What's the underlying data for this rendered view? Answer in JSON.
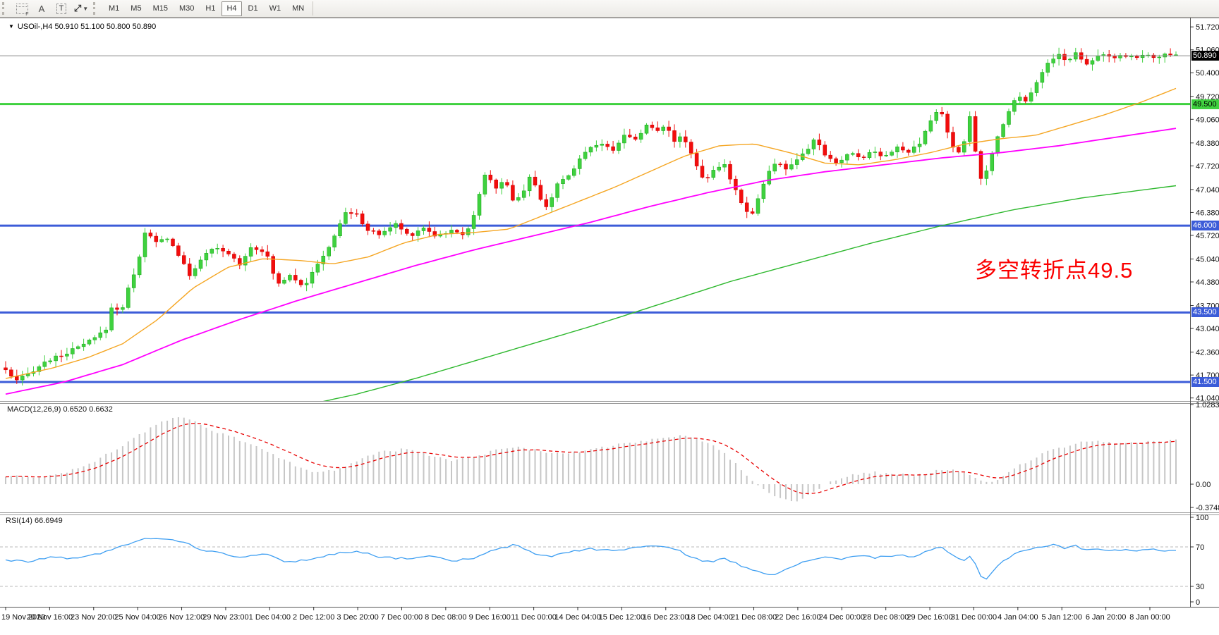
{
  "toolbar": {
    "tools": [
      {
        "name": "fibonacci",
        "glyph": ""
      },
      {
        "name": "text-label",
        "glyph": "A"
      },
      {
        "name": "text",
        "glyph": "T"
      },
      {
        "name": "arrows",
        "glyph": "⤢"
      }
    ],
    "timeframes": [
      "M1",
      "M5",
      "M15",
      "M30",
      "H1",
      "H4",
      "D1",
      "W1",
      "MN"
    ],
    "active_timeframe": "H4"
  },
  "symbol_bar": {
    "dropdown": "▼",
    "text": "USOil-,H4 50.910 51.100 50.800 50.890"
  },
  "chart_data": {
    "type": "candlestick",
    "symbol": "USOil-",
    "timeframe": "H4",
    "ohlc_display": {
      "open": "50.910",
      "high": "51.100",
      "low": "50.800",
      "close": "50.890"
    },
    "current_price": "50.890",
    "price_axis": {
      "ticks": [
        "51.720",
        "51.060",
        "50.400",
        "49.720",
        "49.060",
        "48.380",
        "47.720",
        "47.040",
        "46.380",
        "45.720",
        "45.040",
        "44.380",
        "43.700",
        "43.040",
        "42.360",
        "41.700",
        "41.040"
      ],
      "min": 41.04,
      "max": 51.72
    },
    "time_axis": [
      "19 Nov 2020",
      "20 Nov 16:00",
      "23 Nov 20:00",
      "25 Nov 04:00",
      "26 Nov 12:00",
      "29 Nov 23:00",
      "1 Dec 04:00",
      "2 Dec 12:00",
      "3 Dec 20:00",
      "7 Dec 00:00",
      "8 Dec 08:00",
      "9 Dec 16:00",
      "11 Dec 00:00",
      "14 Dec 04:00",
      "15 Dec 12:00",
      "16 Dec 23:00",
      "18 Dec 04:00",
      "21 Dec 08:00",
      "22 Dec 16:00",
      "24 Dec 00:00",
      "28 Dec 08:00",
      "29 Dec 16:00",
      "31 Dec 00:00",
      "4 Jan 04:00",
      "5 Jan 12:00",
      "6 Jan 20:00",
      "8 Jan 00:00"
    ],
    "horizontal_lines": [
      {
        "price": 49.5,
        "label": "49.500",
        "color": "#3fd13f",
        "text_color": "#000000"
      },
      {
        "price": 46.0,
        "label": "46.000",
        "color": "#3c5cd8",
        "text_color": "#ffffff"
      },
      {
        "price": 43.5,
        "label": "43.500",
        "color": "#3c5cd8",
        "text_color": "#ffffff"
      },
      {
        "price": 41.5,
        "label": "41.500",
        "color": "#3c5cd8",
        "text_color": "#ffffff"
      }
    ],
    "annotation": {
      "text": "多空转折点49.5",
      "color": "#fb0000"
    },
    "candle_colors": {
      "up": "#3fd13f",
      "up_border": "#14a514",
      "down": "#f20d0d",
      "down_border": "#cc0000"
    },
    "price_anchors": [
      [
        0,
        41.85
      ],
      [
        0.008,
        41.5
      ],
      [
        0.02,
        41.75
      ],
      [
        0.035,
        42.1
      ],
      [
        0.05,
        42.3
      ],
      [
        0.065,
        42.55
      ],
      [
        0.078,
        42.8
      ],
      [
        0.088,
        43.1
      ],
      [
        0.093,
        44.15
      ],
      [
        0.097,
        43.2
      ],
      [
        0.102,
        43.95
      ],
      [
        0.108,
        44.45
      ],
      [
        0.115,
        45.2
      ],
      [
        0.12,
        45.9
      ],
      [
        0.127,
        45.5
      ],
      [
        0.138,
        45.65
      ],
      [
        0.148,
        45.15
      ],
      [
        0.157,
        44.55
      ],
      [
        0.167,
        45.05
      ],
      [
        0.178,
        45.35
      ],
      [
        0.19,
        45.2
      ],
      [
        0.2,
        44.9
      ],
      [
        0.21,
        45.4
      ],
      [
        0.222,
        45.25
      ],
      [
        0.232,
        44.3
      ],
      [
        0.243,
        44.6
      ],
      [
        0.255,
        44.25
      ],
      [
        0.268,
        44.95
      ],
      [
        0.28,
        45.6
      ],
      [
        0.29,
        46.4
      ],
      [
        0.3,
        46.3
      ],
      [
        0.31,
        45.85
      ],
      [
        0.32,
        45.75
      ],
      [
        0.333,
        46.05
      ],
      [
        0.345,
        45.7
      ],
      [
        0.357,
        45.95
      ],
      [
        0.368,
        45.7
      ],
      [
        0.38,
        45.85
      ],
      [
        0.393,
        45.75
      ],
      [
        0.402,
        46.5
      ],
      [
        0.41,
        47.55
      ],
      [
        0.418,
        47.05
      ],
      [
        0.426,
        47.35
      ],
      [
        0.434,
        46.7
      ],
      [
        0.442,
        46.95
      ],
      [
        0.449,
        47.5
      ],
      [
        0.456,
        46.75
      ],
      [
        0.463,
        46.55
      ],
      [
        0.471,
        47.15
      ],
      [
        0.482,
        47.45
      ],
      [
        0.495,
        48.15
      ],
      [
        0.508,
        48.4
      ],
      [
        0.518,
        48.15
      ],
      [
        0.528,
        48.6
      ],
      [
        0.538,
        48.5
      ],
      [
        0.548,
        48.9
      ],
      [
        0.556,
        48.7
      ],
      [
        0.564,
        48.95
      ],
      [
        0.572,
        48.4
      ],
      [
        0.579,
        48.6
      ],
      [
        0.588,
        47.9
      ],
      [
        0.597,
        47.3
      ],
      [
        0.606,
        47.6
      ],
      [
        0.614,
        47.75
      ],
      [
        0.622,
        47.15
      ],
      [
        0.63,
        46.6
      ],
      [
        0.637,
        46.25
      ],
      [
        0.644,
        46.9
      ],
      [
        0.652,
        47.55
      ],
      [
        0.66,
        47.85
      ],
      [
        0.668,
        47.6
      ],
      [
        0.676,
        47.9
      ],
      [
        0.684,
        48.1
      ],
      [
        0.692,
        48.55
      ],
      [
        0.701,
        47.95
      ],
      [
        0.711,
        47.8
      ],
      [
        0.721,
        48.1
      ],
      [
        0.731,
        47.95
      ],
      [
        0.741,
        48.15
      ],
      [
        0.751,
        48.0
      ],
      [
        0.761,
        48.25
      ],
      [
        0.771,
        48.1
      ],
      [
        0.781,
        48.35
      ],
      [
        0.79,
        49.0
      ],
      [
        0.798,
        49.4
      ],
      [
        0.805,
        48.7
      ],
      [
        0.812,
        47.95
      ],
      [
        0.819,
        48.45
      ],
      [
        0.825,
        49.35
      ],
      [
        0.83,
        47.6
      ],
      [
        0.835,
        47.2
      ],
      [
        0.841,
        47.9
      ],
      [
        0.847,
        48.5
      ],
      [
        0.853,
        49.0
      ],
      [
        0.859,
        49.45
      ],
      [
        0.865,
        49.75
      ],
      [
        0.871,
        49.6
      ],
      [
        0.877,
        49.9
      ],
      [
        0.884,
        50.3
      ],
      [
        0.891,
        50.7
      ],
      [
        0.899,
        50.95
      ],
      [
        0.907,
        50.7
      ],
      [
        0.915,
        51.0
      ],
      [
        0.923,
        50.65
      ],
      [
        0.931,
        50.85
      ],
      [
        0.939,
        50.95
      ],
      [
        0.947,
        50.78
      ],
      [
        0.955,
        50.9
      ],
      [
        0.963,
        50.85
      ],
      [
        0.972,
        50.9
      ],
      [
        0.981,
        50.86
      ],
      [
        0.99,
        50.9
      ],
      [
        1,
        50.89
      ]
    ],
    "moving_averages": [
      {
        "name": "ma-fast",
        "color": "#f5a623",
        "width": 1.4,
        "anchors": [
          [
            0,
            41.6
          ],
          [
            0.04,
            41.9
          ],
          [
            0.07,
            42.2
          ],
          [
            0.1,
            42.6
          ],
          [
            0.13,
            43.3
          ],
          [
            0.16,
            44.2
          ],
          [
            0.19,
            44.8
          ],
          [
            0.22,
            45.05
          ],
          [
            0.25,
            45.0
          ],
          [
            0.28,
            44.9
          ],
          [
            0.31,
            45.1
          ],
          [
            0.34,
            45.5
          ],
          [
            0.37,
            45.75
          ],
          [
            0.4,
            45.8
          ],
          [
            0.43,
            45.9
          ],
          [
            0.46,
            46.3
          ],
          [
            0.49,
            46.7
          ],
          [
            0.52,
            47.1
          ],
          [
            0.55,
            47.55
          ],
          [
            0.58,
            48.0
          ],
          [
            0.61,
            48.3
          ],
          [
            0.64,
            48.35
          ],
          [
            0.67,
            48.1
          ],
          [
            0.7,
            47.8
          ],
          [
            0.73,
            47.75
          ],
          [
            0.76,
            47.9
          ],
          [
            0.79,
            48.1
          ],
          [
            0.82,
            48.35
          ],
          [
            0.85,
            48.5
          ],
          [
            0.88,
            48.6
          ],
          [
            0.91,
            48.9
          ],
          [
            0.94,
            49.2
          ],
          [
            0.97,
            49.55
          ],
          [
            1,
            49.95
          ]
        ]
      },
      {
        "name": "ma-mid",
        "color": "#ff00ff",
        "width": 1.8,
        "anchors": [
          [
            0,
            41.15
          ],
          [
            0.05,
            41.5
          ],
          [
            0.1,
            42.0
          ],
          [
            0.15,
            42.7
          ],
          [
            0.2,
            43.3
          ],
          [
            0.25,
            43.85
          ],
          [
            0.3,
            44.35
          ],
          [
            0.35,
            44.85
          ],
          [
            0.4,
            45.3
          ],
          [
            0.45,
            45.7
          ],
          [
            0.5,
            46.1
          ],
          [
            0.55,
            46.55
          ],
          [
            0.6,
            46.95
          ],
          [
            0.65,
            47.3
          ],
          [
            0.7,
            47.55
          ],
          [
            0.75,
            47.75
          ],
          [
            0.8,
            47.95
          ],
          [
            0.85,
            48.1
          ],
          [
            0.9,
            48.3
          ],
          [
            0.95,
            48.55
          ],
          [
            1,
            48.8
          ]
        ]
      },
      {
        "name": "ma-slow",
        "color": "#2eb82e",
        "width": 1.4,
        "anchors": [
          [
            0.27,
            40.93
          ],
          [
            0.3,
            41.15
          ],
          [
            0.35,
            41.6
          ],
          [
            0.42,
            42.3
          ],
          [
            0.5,
            43.1
          ],
          [
            0.56,
            43.75
          ],
          [
            0.62,
            44.4
          ],
          [
            0.68,
            44.95
          ],
          [
            0.74,
            45.5
          ],
          [
            0.8,
            46.0
          ],
          [
            0.86,
            46.45
          ],
          [
            0.92,
            46.8
          ],
          [
            1,
            47.15
          ]
        ]
      }
    ],
    "macd": {
      "label": "MACD(12,26,9) 0.6520 0.6632",
      "params": "12,26,9",
      "value": "0.6520",
      "signal": "0.6632",
      "scale_ticks": [
        "1.0283",
        "0.00",
        "-0.3748"
      ],
      "histogram_color": "#c6c6c6",
      "signal_color": "#e80000",
      "anchors": [
        [
          0,
          0.12
        ],
        [
          0.03,
          0.1
        ],
        [
          0.06,
          0.22
        ],
        [
          0.08,
          0.38
        ],
        [
          0.1,
          0.58
        ],
        [
          0.12,
          0.8
        ],
        [
          0.135,
          0.95
        ],
        [
          0.15,
          1.0
        ],
        [
          0.165,
          0.9
        ],
        [
          0.185,
          0.75
        ],
        [
          0.21,
          0.6
        ],
        [
          0.24,
          0.35
        ],
        [
          0.26,
          0.18
        ],
        [
          0.28,
          0.2
        ],
        [
          0.3,
          0.35
        ],
        [
          0.32,
          0.48
        ],
        [
          0.34,
          0.52
        ],
        [
          0.36,
          0.44
        ],
        [
          0.38,
          0.35
        ],
        [
          0.4,
          0.4
        ],
        [
          0.42,
          0.52
        ],
        [
          0.44,
          0.55
        ],
        [
          0.46,
          0.48
        ],
        [
          0.48,
          0.45
        ],
        [
          0.5,
          0.52
        ],
        [
          0.52,
          0.58
        ],
        [
          0.54,
          0.62
        ],
        [
          0.56,
          0.68
        ],
        [
          0.58,
          0.72
        ],
        [
          0.6,
          0.62
        ],
        [
          0.615,
          0.45
        ],
        [
          0.63,
          0.2
        ],
        [
          0.645,
          -0.05
        ],
        [
          0.66,
          -0.2
        ],
        [
          0.675,
          -0.25
        ],
        [
          0.69,
          -0.12
        ],
        [
          0.705,
          0.03
        ],
        [
          0.72,
          0.13
        ],
        [
          0.74,
          0.18
        ],
        [
          0.76,
          0.14
        ],
        [
          0.78,
          0.13
        ],
        [
          0.8,
          0.22
        ],
        [
          0.815,
          0.2
        ],
        [
          0.83,
          0.08
        ],
        [
          0.84,
          0.0
        ],
        [
          0.85,
          0.1
        ],
        [
          0.86,
          0.22
        ],
        [
          0.875,
          0.36
        ],
        [
          0.89,
          0.48
        ],
        [
          0.905,
          0.56
        ],
        [
          0.92,
          0.62
        ],
        [
          0.935,
          0.63
        ],
        [
          0.95,
          0.6
        ],
        [
          0.965,
          0.62
        ],
        [
          0.98,
          0.64
        ],
        [
          1,
          0.652
        ]
      ]
    },
    "rsi": {
      "label": "RSI(14) 66.6949",
      "period": "14",
      "value": "66.6949",
      "scale_ticks": [
        "100",
        "70",
        "30",
        "0"
      ],
      "levels": [
        70,
        30
      ],
      "line_color": "#3f9ff2",
      "anchors": [
        [
          0,
          57
        ],
        [
          0.02,
          55
        ],
        [
          0.04,
          60
        ],
        [
          0.06,
          58
        ],
        [
          0.08,
          63
        ],
        [
          0.1,
          72
        ],
        [
          0.12,
          78
        ],
        [
          0.135,
          79
        ],
        [
          0.15,
          76
        ],
        [
          0.165,
          68
        ],
        [
          0.18,
          65
        ],
        [
          0.2,
          60
        ],
        [
          0.22,
          63
        ],
        [
          0.24,
          55
        ],
        [
          0.26,
          57
        ],
        [
          0.28,
          63
        ],
        [
          0.3,
          66
        ],
        [
          0.32,
          60
        ],
        [
          0.34,
          58
        ],
        [
          0.36,
          61
        ],
        [
          0.38,
          56
        ],
        [
          0.4,
          58
        ],
        [
          0.42,
          68
        ],
        [
          0.435,
          72
        ],
        [
          0.45,
          64
        ],
        [
          0.465,
          60
        ],
        [
          0.48,
          65
        ],
        [
          0.5,
          68
        ],
        [
          0.52,
          66
        ],
        [
          0.54,
          70
        ],
        [
          0.56,
          71
        ],
        [
          0.575,
          66
        ],
        [
          0.59,
          58
        ],
        [
          0.6,
          55
        ],
        [
          0.615,
          58
        ],
        [
          0.63,
          50
        ],
        [
          0.645,
          45
        ],
        [
          0.655,
          42
        ],
        [
          0.67,
          48
        ],
        [
          0.685,
          56
        ],
        [
          0.7,
          60
        ],
        [
          0.715,
          58
        ],
        [
          0.73,
          61
        ],
        [
          0.745,
          59
        ],
        [
          0.76,
          62
        ],
        [
          0.775,
          60
        ],
        [
          0.79,
          66
        ],
        [
          0.8,
          70
        ],
        [
          0.81,
          60
        ],
        [
          0.82,
          55
        ],
        [
          0.826,
          63
        ],
        [
          0.832,
          40
        ],
        [
          0.838,
          38
        ],
        [
          0.845,
          48
        ],
        [
          0.855,
          58
        ],
        [
          0.865,
          65
        ],
        [
          0.875,
          68
        ],
        [
          0.885,
          70
        ],
        [
          0.895,
          72
        ],
        [
          0.905,
          69
        ],
        [
          0.915,
          71
        ],
        [
          0.925,
          66
        ],
        [
          0.935,
          68
        ],
        [
          0.945,
          67
        ],
        [
          0.955,
          67
        ],
        [
          0.965,
          66.5
        ],
        [
          0.975,
          67
        ],
        [
          0.985,
          66.8
        ],
        [
          1,
          66.69
        ]
      ]
    }
  }
}
